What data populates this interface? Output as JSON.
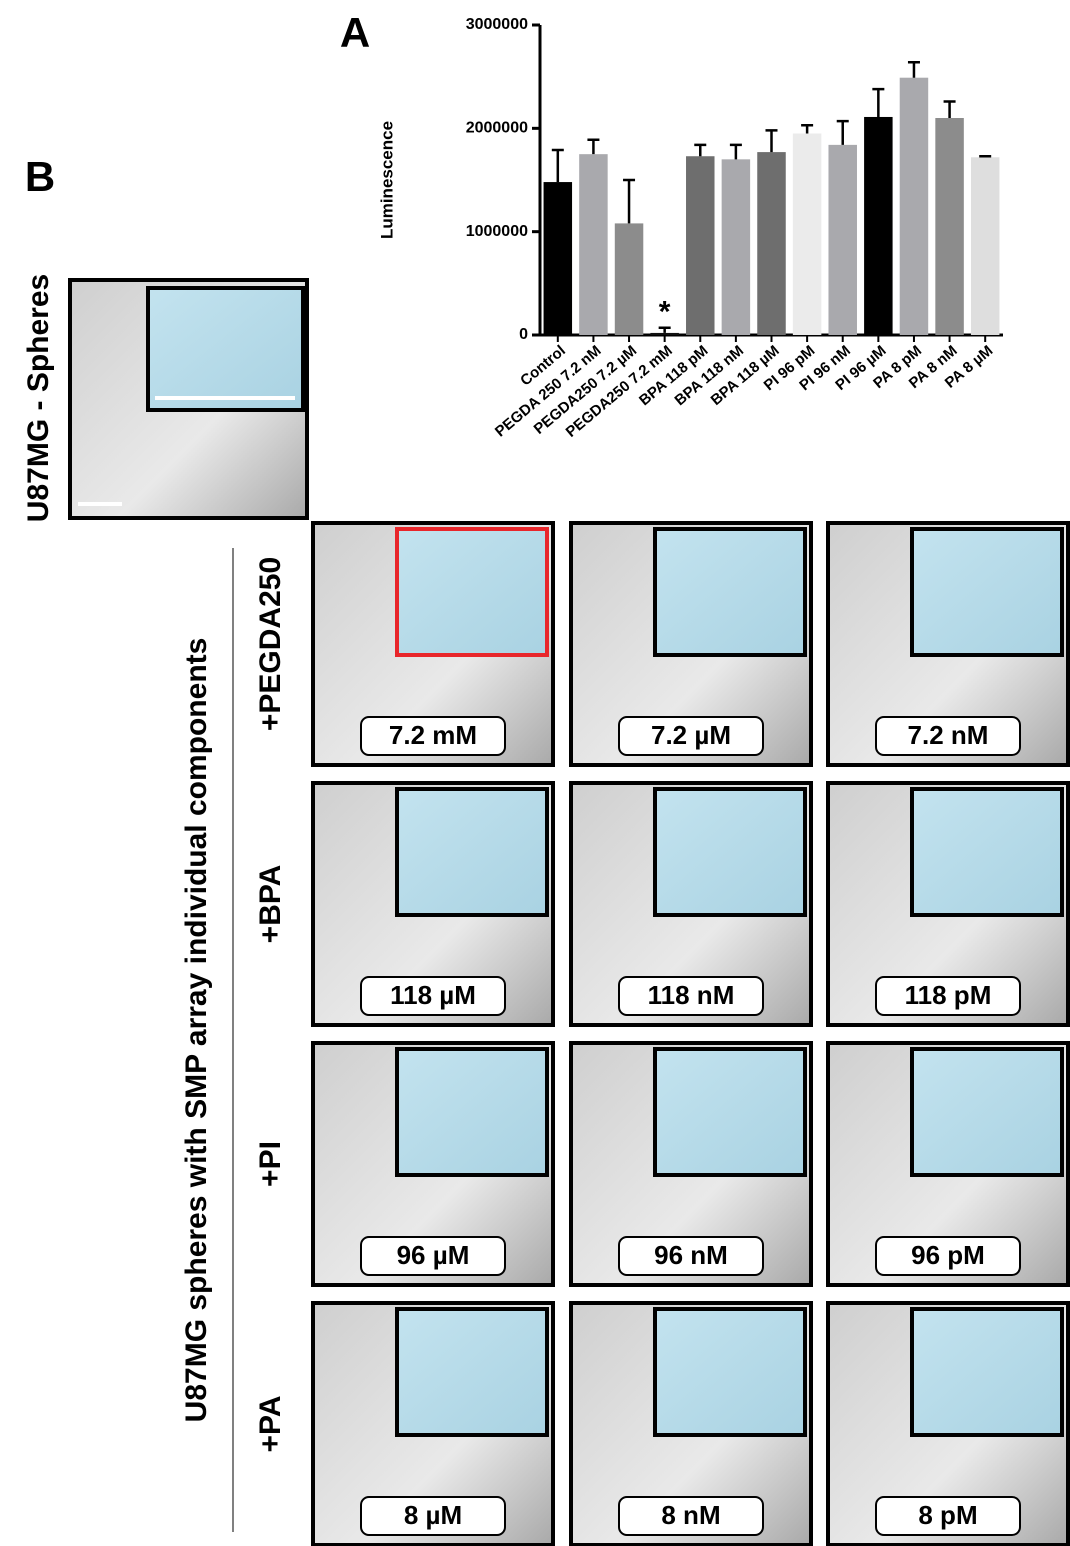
{
  "chart_data": {
    "type": "bar",
    "panel_label": "A",
    "ylabel": "Luminescence",
    "categories": [
      "Control",
      "PEGDA 250 7.2 nM",
      "PEGDA250 7.2 µM",
      "PEGDA250 7.2 mM",
      "BPA 118 pM",
      "BPA 118 nM",
      "BPA 118 µM",
      "PI 96 pM",
      "PI 96 nM",
      "PI 96 µM",
      "PA 8 pM",
      "PA 8 nM",
      "PA 8 µM"
    ],
    "values": [
      1480000,
      1750000,
      1080000,
      20000,
      1730000,
      1700000,
      1770000,
      1950000,
      1840000,
      2110000,
      2490000,
      2100000,
      1720000
    ],
    "errors": [
      310000,
      140000,
      420000,
      50000,
      110000,
      140000,
      210000,
      80000,
      230000,
      270000,
      150000,
      160000,
      10000
    ],
    "colors": [
      "#000000",
      "#a9a9ad",
      "#8c8c8c",
      "#111111",
      "#6e6e6e",
      "#a9a9ad",
      "#6e6e6e",
      "#ebebeb",
      "#a9a9ad",
      "#000000",
      "#a9a9ad",
      "#8c8c8c",
      "#dedede"
    ],
    "ylim": [
      0,
      3000000
    ],
    "yticks": [
      0,
      1000000,
      2000000,
      3000000
    ],
    "annotations": [
      {
        "text": "*",
        "category": "PEGDA250 7.2 mM"
      }
    ]
  },
  "panel_b": {
    "label": "B",
    "spheres_label": "U87MG - Spheres",
    "side_label": "U87MG spheres with SMP array individual components",
    "rows": [
      {
        "name": "+PEGDA250",
        "concentrations": [
          "7.2 mM",
          "7.2 µM",
          "7.2 nM"
        ]
      },
      {
        "name": "+BPA",
        "concentrations": [
          "118 µM",
          "118 nM",
          "118 pM"
        ]
      },
      {
        "name": "+PI",
        "concentrations": [
          "96 µM",
          "96 nM",
          "96 pM"
        ]
      },
      {
        "name": "+PA",
        "concentrations": [
          "8 µM",
          "8 nM",
          "8 pM"
        ]
      }
    ]
  }
}
